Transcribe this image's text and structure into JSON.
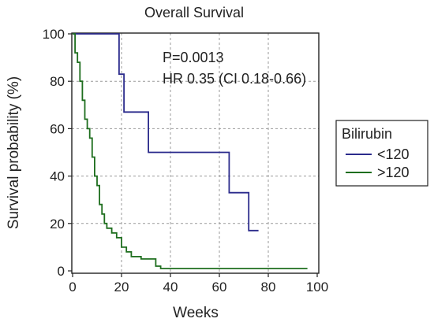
{
  "chart_data": {
    "type": "line",
    "title": "Overall Survival",
    "xlabel": "Weeks",
    "ylabel": "Survival probability (%)",
    "xlim": [
      0,
      100
    ],
    "ylim": [
      0,
      100
    ],
    "xticks": [
      "0",
      "20",
      "40",
      "60",
      "80",
      "100"
    ],
    "yticks": [
      "0",
      "20",
      "40",
      "60",
      "80",
      "100"
    ],
    "grid": true,
    "annotations": [
      "P=0.0013",
      "HR 0.35 (CI 0.18-0.66)"
    ],
    "legend": {
      "title": "Bilirubin",
      "placement": "right"
    },
    "series": [
      {
        "name": "<120",
        "color": "#2b2b8c",
        "step": true,
        "x": [
          0,
          19,
          19,
          21,
          21,
          31,
          31,
          64,
          64,
          72,
          72,
          76
        ],
        "y": [
          100,
          100,
          83,
          83,
          67,
          67,
          50,
          50,
          33,
          33,
          17,
          17
        ]
      },
      {
        "name": ">120",
        "color": "#1e6e1e",
        "step": true,
        "x": [
          0,
          1,
          1,
          2,
          2,
          3,
          3,
          4,
          4,
          5,
          5,
          6,
          6,
          7,
          7,
          8,
          8,
          9,
          9,
          10,
          10,
          11,
          11,
          12,
          12,
          13,
          13,
          14,
          14,
          16,
          16,
          18,
          18,
          20,
          20,
          22,
          22,
          24,
          24,
          28,
          28,
          34,
          34,
          36,
          36,
          96
        ],
        "y": [
          100,
          100,
          92,
          92,
          88,
          88,
          80,
          80,
          72,
          72,
          64,
          64,
          60,
          60,
          56,
          56,
          48,
          48,
          40,
          40,
          36,
          36,
          28,
          28,
          24,
          24,
          20,
          20,
          18,
          18,
          16,
          16,
          14,
          14,
          10,
          10,
          8,
          8,
          6,
          6,
          5,
          5,
          2,
          2,
          1,
          1
        ]
      }
    ]
  }
}
